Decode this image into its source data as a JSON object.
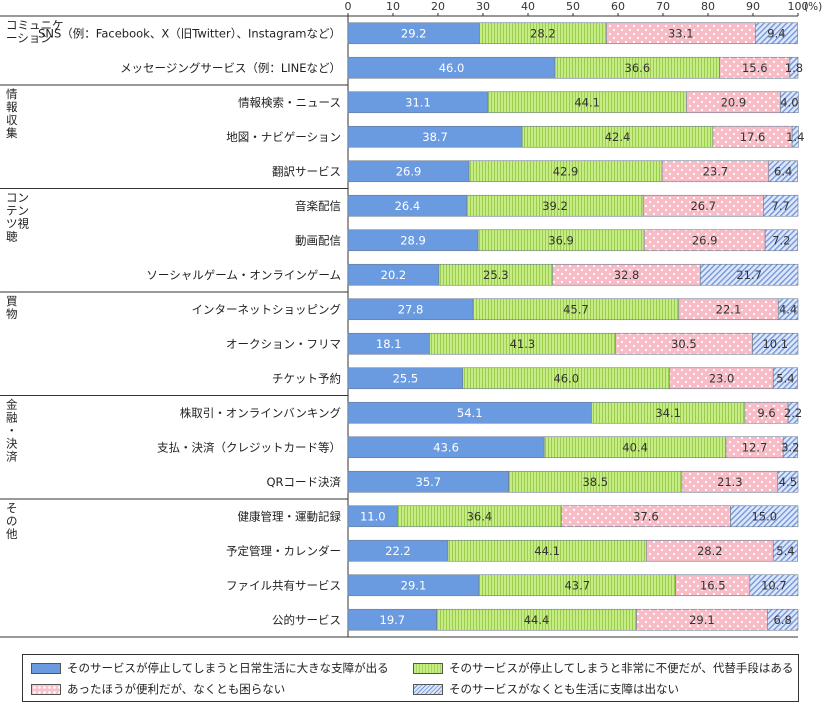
{
  "chart_data": {
    "type": "bar",
    "orientation": "horizontal",
    "stacked": true,
    "unit_label": "(%)",
    "xlim": [
      0,
      100
    ],
    "x_ticks": [
      "0",
      "10",
      "20",
      "30",
      "40",
      "50",
      "60",
      "70",
      "80",
      "90",
      "100"
    ],
    "groups": [
      {
        "label": "コミュニケーション",
        "label_lines": [
          "コミュニケ",
          "ーション"
        ],
        "items": [
          0,
          1
        ]
      },
      {
        "label": "情報収集",
        "label_lines": [
          "情",
          "報",
          "収",
          "集"
        ],
        "items": [
          2,
          3,
          4
        ]
      },
      {
        "label": "コンテンツ視聴",
        "label_lines": [
          "コン",
          "テン",
          "ツ視",
          "聴"
        ],
        "items": [
          5,
          6,
          7
        ]
      },
      {
        "label": "買物",
        "label_lines": [
          "買",
          "物"
        ],
        "items": [
          8,
          9,
          10
        ]
      },
      {
        "label": "金融・決済",
        "label_lines": [
          "金",
          "融",
          "・",
          "決",
          "済"
        ],
        "items": [
          11,
          12,
          13
        ]
      },
      {
        "label": "その他",
        "label_lines": [
          "そ",
          "の",
          "他"
        ],
        "items": [
          14,
          15,
          16,
          17
        ]
      }
    ],
    "categories": [
      "SNS（例：Facebook、X（旧Twitter）、Instagramなど）",
      "メッセージングサービス（例：LINEなど）",
      "情報検索・ニュース",
      "地図・ナビゲーション",
      "翻訳サービス",
      "音楽配信",
      "動画配信",
      "ソーシャルゲーム・オンラインゲーム",
      "インターネットショッピング",
      "オークション・フリマ",
      "チケット予約",
      "株取引・オンラインバンキング",
      "支払・決済（クレジットカード等）",
      "QRコード決済",
      "健康管理・運動記録",
      "予定管理・カレンダー",
      "ファイル共有サービス",
      "公的サービス"
    ],
    "series": [
      {
        "name": "そのサービスが停止してしまうと日常生活に大きな支障が出る",
        "color": "#6a9be0",
        "values": [
          29.2,
          46.0,
          31.1,
          38.7,
          26.9,
          26.4,
          28.9,
          20.2,
          27.8,
          18.1,
          25.5,
          54.1,
          43.6,
          35.7,
          11.0,
          22.2,
          29.1,
          19.7
        ],
        "labels": [
          "29.2",
          "46.0",
          "31.1",
          "38.7",
          "26.9",
          "26.4",
          "28.9",
          "20.2",
          "27.8",
          "18.1",
          "25.5",
          "54.1",
          "43.6",
          "35.7",
          "11.0",
          "22.2",
          "29.1",
          "19.7"
        ]
      },
      {
        "name": "そのサービスが停止してしまうと非常に不便だが、代替手段はある",
        "color": "#b5e06e",
        "values": [
          28.2,
          36.6,
          44.1,
          42.4,
          42.9,
          39.2,
          36.9,
          25.3,
          45.7,
          41.3,
          46.0,
          34.1,
          40.4,
          38.5,
          36.4,
          44.1,
          43.7,
          44.4
        ],
        "labels": [
          "28.2",
          "36.6",
          "44.1",
          "42.4",
          "42.9",
          "39.2",
          "36.9",
          "25.3",
          "45.7",
          "41.3",
          "46.0",
          "34.1",
          "40.4",
          "38.5",
          "36.4",
          "44.1",
          "43.7",
          "44.4"
        ]
      },
      {
        "name": "あったほうが便利だが、なくとも困らない",
        "color": "#f9c3cc",
        "values": [
          33.1,
          15.6,
          20.9,
          17.6,
          23.7,
          26.7,
          26.9,
          32.8,
          22.1,
          30.5,
          23.0,
          9.6,
          12.7,
          21.3,
          37.6,
          28.2,
          16.5,
          29.1
        ],
        "labels": [
          "33.1",
          "15.6",
          "20.9",
          "17.6",
          "23.7",
          "26.7",
          "26.9",
          "32.8",
          "22.1",
          "30.5",
          "23.0",
          "9.6",
          "12.7",
          "21.3",
          "37.6",
          "28.2",
          "16.5",
          "29.1"
        ]
      },
      {
        "name": "そのサービスがなくとも生活に支障は出ない",
        "color": "#b9cdf2",
        "values": [
          9.4,
          1.8,
          4.0,
          1.4,
          6.4,
          7.7,
          7.2,
          21.7,
          4.4,
          10.1,
          5.4,
          2.2,
          3.2,
          4.5,
          15.0,
          5.4,
          10.7,
          6.8
        ],
        "labels": [
          "9.4",
          "1.8",
          "4.0",
          "1.4",
          "6.4",
          "7.7",
          "7.2",
          "21.7",
          "4.4",
          "10.1",
          "5.4",
          "2.2",
          "3.2",
          "4.5",
          "15.0",
          "5.4",
          "10.7",
          "6.8"
        ]
      }
    ],
    "legend_position": "bottom",
    "grid": false
  }
}
